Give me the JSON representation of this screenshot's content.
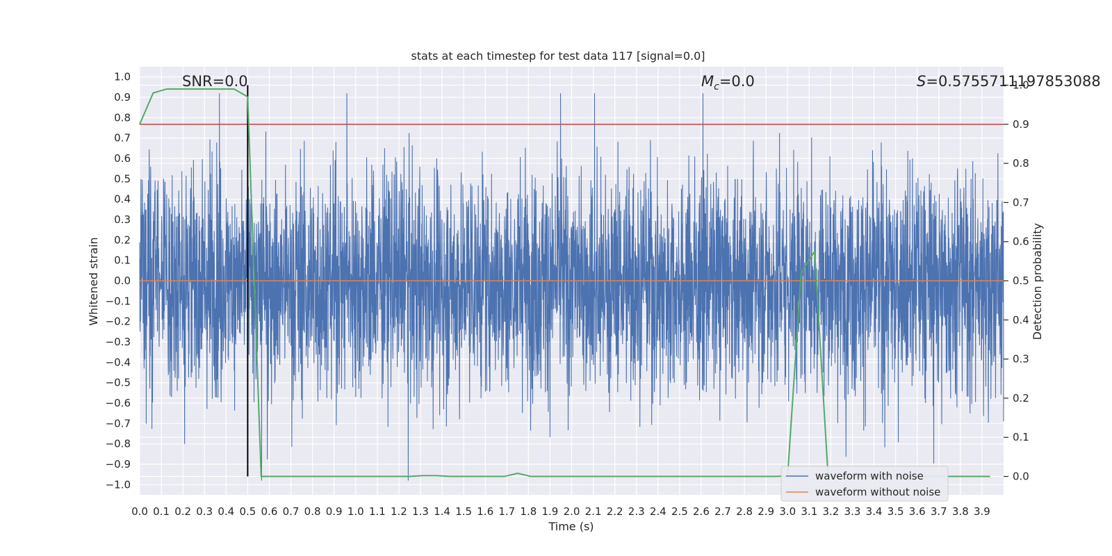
{
  "chart_data": {
    "type": "line",
    "title": "stats at each timestep for test data 117 [signal=0.0]",
    "xlabel": "Time (s)",
    "ylabel": "Whitened strain",
    "y2label": "Detection probability",
    "xlim": [
      0.0,
      4.0
    ],
    "ylim": [
      -1.05,
      1.05
    ],
    "y2lim": [
      -0.047,
      1.047
    ],
    "xticks": [
      0.0,
      0.1,
      0.2,
      0.3,
      0.4,
      0.5,
      0.6,
      0.7,
      0.8,
      0.9,
      1.0,
      1.1,
      1.2,
      1.3,
      1.4,
      1.5,
      1.6,
      1.7,
      1.8,
      1.9,
      2.0,
      2.1,
      2.2,
      2.3,
      2.4,
      2.5,
      2.6,
      2.7,
      2.8,
      2.9,
      3.0,
      3.1,
      3.2,
      3.3,
      3.4,
      3.5,
      3.6,
      3.7,
      3.8,
      3.9
    ],
    "xtick_labels": [
      "0.0",
      "0.1",
      "0.2",
      "0.3",
      "0.4",
      "0.5",
      "0.6",
      "0.7",
      "0.8",
      "0.9",
      "1.0",
      "1.1",
      "1.2",
      "1.3",
      "1.4",
      "1.5",
      "1.6",
      "1.7",
      "1.8",
      "1.9",
      "2.0",
      "2.1",
      "2.2",
      "2.3",
      "2.4",
      "2.5",
      "2.6",
      "2.7",
      "2.8",
      "2.9",
      "3.0",
      "3.1",
      "3.2",
      "3.3",
      "3.4",
      "3.5",
      "3.6",
      "3.7",
      "3.8",
      "3.9"
    ],
    "yticks": [
      1.0,
      0.9,
      0.8,
      0.7,
      0.6,
      0.5,
      0.4,
      0.3,
      0.2,
      0.1,
      0.0,
      -0.1,
      -0.2,
      -0.3,
      -0.4,
      -0.5,
      -0.6,
      -0.7,
      -0.8,
      -0.9,
      -1.0
    ],
    "ytick_labels": [
      "1.0",
      "0.9",
      "0.8",
      "0.7",
      "0.6",
      "0.5",
      "0.4",
      "0.3",
      "0.2",
      "0.1",
      "0.0",
      "−0.1",
      "−0.2",
      "−0.3",
      "−0.4",
      "−0.5",
      "−0.6",
      "−0.7",
      "−0.8",
      "−0.9",
      "−1.0"
    ],
    "y2ticks": [
      1.0,
      0.9,
      0.8,
      0.7,
      0.6,
      0.5,
      0.4,
      0.3,
      0.2,
      0.1,
      0.0
    ],
    "y2tick_labels": [
      "1.0",
      "0.9",
      "0.8",
      "0.7",
      "0.6",
      "0.5",
      "0.4",
      "0.3",
      "0.2",
      "0.1",
      "0.0"
    ],
    "grid": true,
    "legend_position": "bottom-right",
    "background_color": "#EAEAF2",
    "annotations": {
      "snr": "SNR=0.0",
      "mc_symbol": "M",
      "mc_subscript": "c",
      "mc_value": "=0.0",
      "s_symbol": "S",
      "s_value": "=0.5755711197853088"
    },
    "threshold": {
      "value": 0.9,
      "axis": "y2",
      "color": "#C44E52"
    },
    "marker_line": {
      "x": 0.5,
      "color": "#000000"
    },
    "series": [
      {
        "name": "waveform with noise",
        "axis": "y",
        "color": "#4C72B0",
        "noise": {
          "samples": 4096,
          "std": 0.27,
          "peak_max": 0.92,
          "peak_min": -0.98
        }
      },
      {
        "name": "waveform without noise",
        "axis": "y",
        "color": "#DD8452",
        "constant": 0.0
      },
      {
        "name": "detection probability",
        "axis": "y2",
        "color": "#55A868",
        "x": [
          0.0,
          0.0625,
          0.125,
          0.1875,
          0.25,
          0.3125,
          0.375,
          0.4375,
          0.5,
          0.5625,
          0.625,
          0.6875,
          0.75,
          0.8125,
          0.875,
          0.9375,
          1.0,
          1.0625,
          1.125,
          1.1875,
          1.25,
          1.3125,
          1.375,
          1.4375,
          1.5,
          1.5625,
          1.625,
          1.6875,
          1.75,
          1.8125,
          1.875,
          1.9375,
          2.0,
          2.0625,
          2.125,
          2.1875,
          2.25,
          2.3125,
          2.375,
          2.4375,
          2.5,
          2.5625,
          2.625,
          2.6875,
          2.75,
          2.8125,
          2.875,
          2.9375,
          3.0,
          3.0625,
          3.125,
          3.1875,
          3.25,
          3.3125,
          3.375,
          3.4375,
          3.5,
          3.5625,
          3.625,
          3.6875,
          3.75,
          3.8125,
          3.875,
          3.9375
        ],
        "y": [
          0.9,
          0.98,
          0.99,
          0.99,
          0.99,
          0.99,
          0.99,
          0.99,
          0.97,
          0.0,
          0.0,
          0.0,
          0.0,
          0.0,
          0.0,
          0.0,
          0.0,
          0.0,
          0.0,
          0.0,
          0.0,
          0.002,
          0.002,
          0.0,
          0.0,
          0.0,
          0.0,
          0.0,
          0.008,
          0.0,
          0.0,
          0.0,
          0.0,
          0.0,
          0.0,
          0.0,
          0.0,
          0.0,
          0.0,
          0.0,
          0.0,
          0.0,
          0.0,
          0.0,
          0.0,
          0.0,
          0.0,
          0.0,
          0.001,
          0.52,
          0.575,
          0.0,
          0.0,
          0.0,
          0.0,
          0.0,
          0.0,
          0.0,
          0.0,
          0.0,
          0.0,
          0.0,
          0.0,
          0.0
        ]
      }
    ]
  }
}
